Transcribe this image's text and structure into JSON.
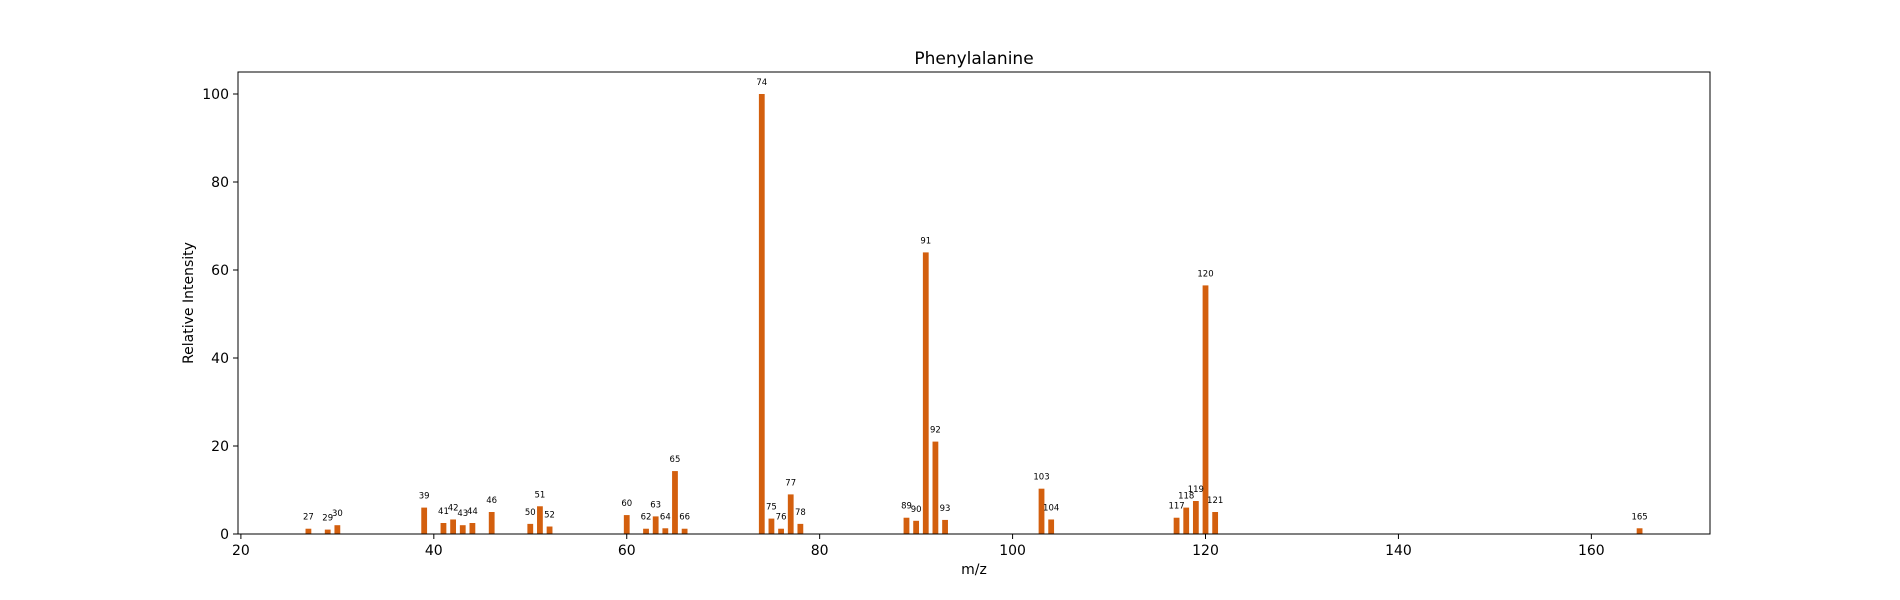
{
  "chart_data": {
    "type": "bar",
    "title": "Phenylalanine",
    "xlabel": "m/z",
    "ylabel": "Relative Intensity",
    "xlim": [
      19.7,
      172.3
    ],
    "ylim": [
      0,
      105
    ],
    "x_ticks": [
      20,
      40,
      60,
      80,
      100,
      120,
      140,
      160
    ],
    "y_ticks": [
      0,
      20,
      40,
      60,
      80,
      100
    ],
    "grid": false,
    "bar_color": "#d35f0e",
    "series": [
      {
        "points": [
          {
            "x": 27,
            "y": 1.2
          },
          {
            "x": 29,
            "y": 1.0
          },
          {
            "x": 30,
            "y": 2.0
          },
          {
            "x": 39,
            "y": 6.0
          },
          {
            "x": 41,
            "y": 2.5
          },
          {
            "x": 42,
            "y": 3.3
          },
          {
            "x": 43,
            "y": 2.0
          },
          {
            "x": 44,
            "y": 2.5
          },
          {
            "x": 46,
            "y": 5.0
          },
          {
            "x": 50,
            "y": 2.3
          },
          {
            "x": 51,
            "y": 6.3
          },
          {
            "x": 52,
            "y": 1.7
          },
          {
            "x": 60,
            "y": 4.3
          },
          {
            "x": 62,
            "y": 1.2
          },
          {
            "x": 63,
            "y": 4.0
          },
          {
            "x": 64,
            "y": 1.3
          },
          {
            "x": 65,
            "y": 14.3
          },
          {
            "x": 66,
            "y": 1.2
          },
          {
            "x": 74,
            "y": 100.0
          },
          {
            "x": 75,
            "y": 3.5
          },
          {
            "x": 76,
            "y": 1.2
          },
          {
            "x": 77,
            "y": 9.0
          },
          {
            "x": 78,
            "y": 2.3
          },
          {
            "x": 89,
            "y": 3.7
          },
          {
            "x": 90,
            "y": 3.0
          },
          {
            "x": 91,
            "y": 64.0
          },
          {
            "x": 92,
            "y": 21.0
          },
          {
            "x": 93,
            "y": 3.2
          },
          {
            "x": 103,
            "y": 10.3
          },
          {
            "x": 104,
            "y": 3.3
          },
          {
            "x": 117,
            "y": 3.7
          },
          {
            "x": 118,
            "y": 6.0
          },
          {
            "x": 119,
            "y": 7.5
          },
          {
            "x": 120,
            "y": 56.5
          },
          {
            "x": 121,
            "y": 5.0
          },
          {
            "x": 165,
            "y": 1.3
          }
        ]
      }
    ]
  }
}
